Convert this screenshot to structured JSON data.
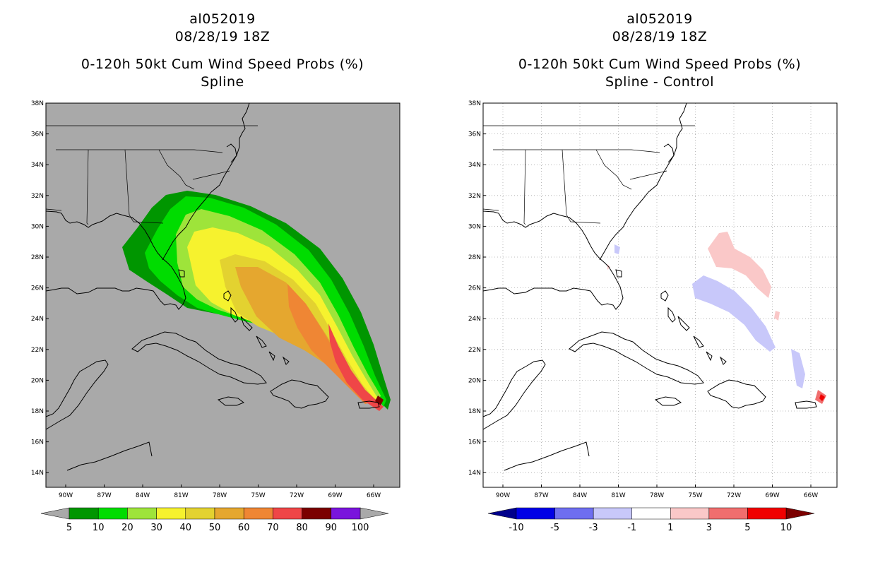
{
  "panels": [
    {
      "id": "left",
      "title_lines": [
        "al052019",
        "08/28/19 18Z",
        "0-120h 50kt Cum Wind Speed Probs (%)",
        "Spline"
      ],
      "background": "#a9a9a9",
      "grid": false,
      "colorbar": {
        "colors": [
          "#009600",
          "#00dc00",
          "#9ee43a",
          "#f6f22e",
          "#e3d230",
          "#e5a72f",
          "#ef8634",
          "#ef4647",
          "#7b0000",
          "#7a14dc"
        ],
        "labels": [
          "5",
          "10",
          "20",
          "30",
          "40",
          "50",
          "60",
          "70",
          "80",
          "90",
          "100"
        ]
      }
    },
    {
      "id": "right",
      "title_lines": [
        "al052019",
        "08/28/19 18Z",
        "0-120h 50kt Cum Wind Speed Probs (%)",
        "Spline - Control"
      ],
      "background": "#ffffff",
      "grid": true,
      "colorbar": {
        "colors": [
          "#0000e6",
          "#6e6ef0",
          "#c8c8fa",
          "#ffffff",
          "#fac8c8",
          "#f06e6e",
          "#f00000"
        ],
        "labels": [
          "-10",
          "-5",
          "-3",
          "-1",
          "1",
          "3",
          "5",
          "10"
        ]
      }
    }
  ],
  "map": {
    "lon_labels": [
      "90W",
      "87W",
      "84W",
      "81W",
      "78W",
      "75W",
      "72W",
      "69W",
      "66W"
    ],
    "lat_labels": [
      "38N",
      "36N",
      "34N",
      "32N",
      "30N",
      "28N",
      "26N",
      "24N",
      "22N",
      "20N",
      "18N",
      "16N",
      "14N"
    ]
  }
}
